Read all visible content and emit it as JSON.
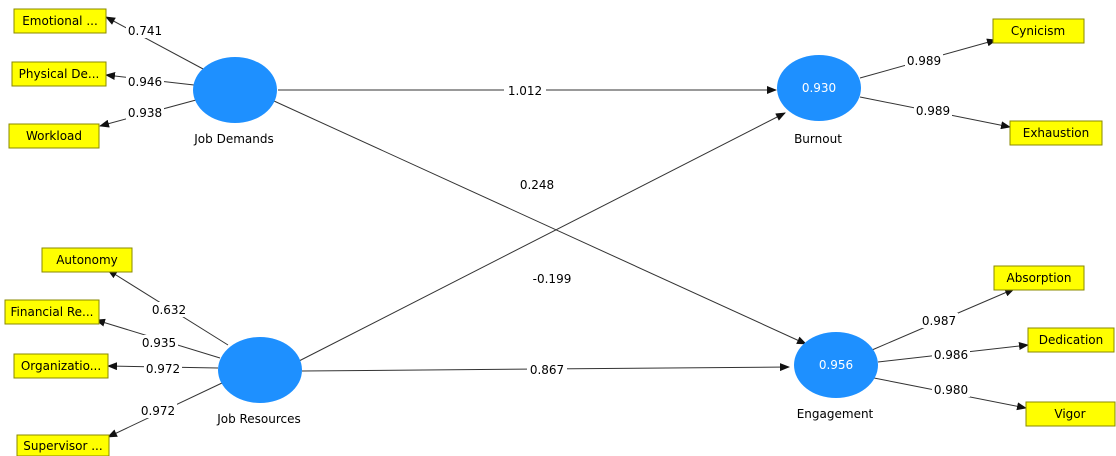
{
  "latents": {
    "job_demands": {
      "name": "Job Demands",
      "r2": ""
    },
    "job_resources": {
      "name": "Job Resources",
      "r2": ""
    },
    "burnout": {
      "name": "Burnout",
      "r2": "0.930"
    },
    "engagement": {
      "name": "Engagement",
      "r2": "0.956"
    }
  },
  "indicators": {
    "emotional": "Emotional ...",
    "physical": "Physical De...",
    "workload": "Workload",
    "autonomy": "Autonomy",
    "financial": "Financial Re...",
    "organizational": "Organizatio...",
    "supervisor": "Supervisor ...",
    "cynicism": "Cynicism",
    "exhaustion": "Exhaustion",
    "absorption": "Absorption",
    "dedication": "Dedication",
    "vigor": "Vigor"
  },
  "loadings": {
    "emotional": "0.741",
    "physical": "0.946",
    "workload": "0.938",
    "autonomy": "0.632",
    "financial": "0.935",
    "organizational": "0.972",
    "supervisor": "0.972",
    "cynicism": "0.989",
    "exhaustion": "0.989",
    "absorption": "0.987",
    "dedication": "0.986",
    "vigor": "0.980"
  },
  "paths": {
    "jd_burnout": "1.012",
    "jd_engagement": "0.248",
    "jr_burnout": "-0.199",
    "jr_engagement": "0.867"
  },
  "colors": {
    "latent": "#1e90ff",
    "indicator": "#ffff00"
  }
}
